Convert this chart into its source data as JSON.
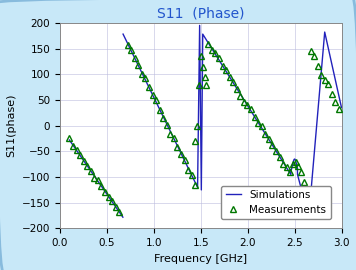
{
  "title": "S11  (Phase)",
  "xlabel": "Frequency [GHz]",
  "ylabel": "S11(phase)",
  "xlim": [
    0,
    3.0
  ],
  "ylim": [
    -200,
    200
  ],
  "xticks": [
    0,
    0.5,
    1.0,
    1.5,
    2.0,
    2.5,
    3.0
  ],
  "yticks": [
    -200,
    -150,
    -100,
    -50,
    0,
    50,
    100,
    150,
    200
  ],
  "sim_color": "#2222bb",
  "meas_color": "#007700",
  "background_color": "#ffffff",
  "outer_background": "#c8e8f8",
  "title_color": "#2255cc",
  "legend_labels": [
    "Simulations",
    "Measurements"
  ],
  "figsize": [
    3.56,
    2.7
  ],
  "dpi": 100
}
